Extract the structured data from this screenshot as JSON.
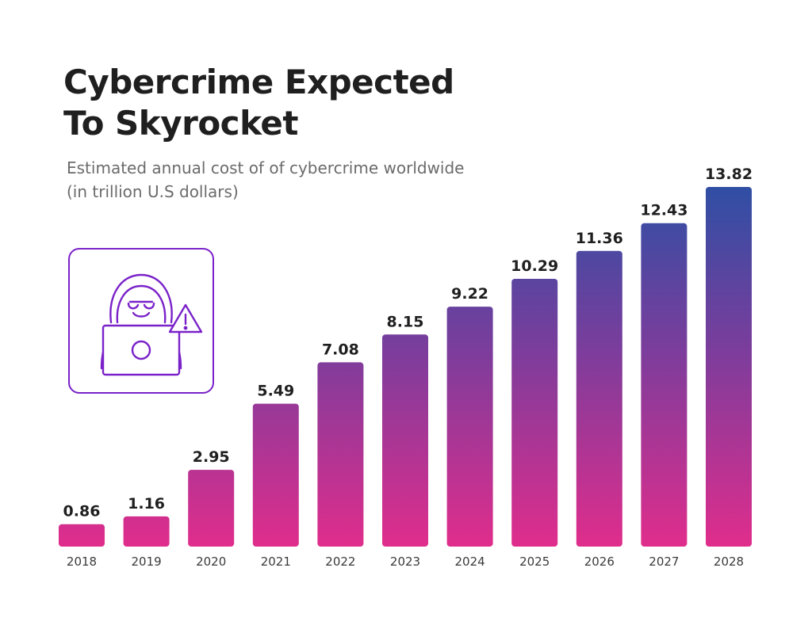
{
  "title_line1": "Cybercrime Expected",
  "title_line2": "To Skyrocket",
  "subtitle_line1": "Estimated annual cost of of cybercrime worldwide",
  "subtitle_line2": "(in trillion U.S dollars)",
  "icon": "hacker-laptop-warning-icon",
  "colors": {
    "bar_top": "#2f4fa4",
    "bar_mid": "#7b3d9c",
    "bar_bottom": "#e02d8c",
    "icon_stroke": "#7a22c9",
    "text": "#1f1f1f"
  },
  "chart_data": {
    "type": "bar",
    "title": "Cybercrime Expected To Skyrocket",
    "subtitle": "Estimated annual cost of of cybercrime worldwide (in trillion U.S dollars)",
    "categories": [
      "2018",
      "2019",
      "2020",
      "2021",
      "2022",
      "2023",
      "2024",
      "2025",
      "2026",
      "2027",
      "2028"
    ],
    "values": [
      0.86,
      1.16,
      2.95,
      5.49,
      7.08,
      8.15,
      9.22,
      10.29,
      11.36,
      12.43,
      13.82
    ],
    "value_labels": [
      "0.86",
      "1.16",
      "2.95",
      "5.49",
      "7.08",
      "8.15",
      "9.22",
      "10.29",
      "11.36",
      "12.43",
      "13.82"
    ],
    "ylim": [
      0,
      13.82
    ],
    "grid": false,
    "legend": "none"
  }
}
